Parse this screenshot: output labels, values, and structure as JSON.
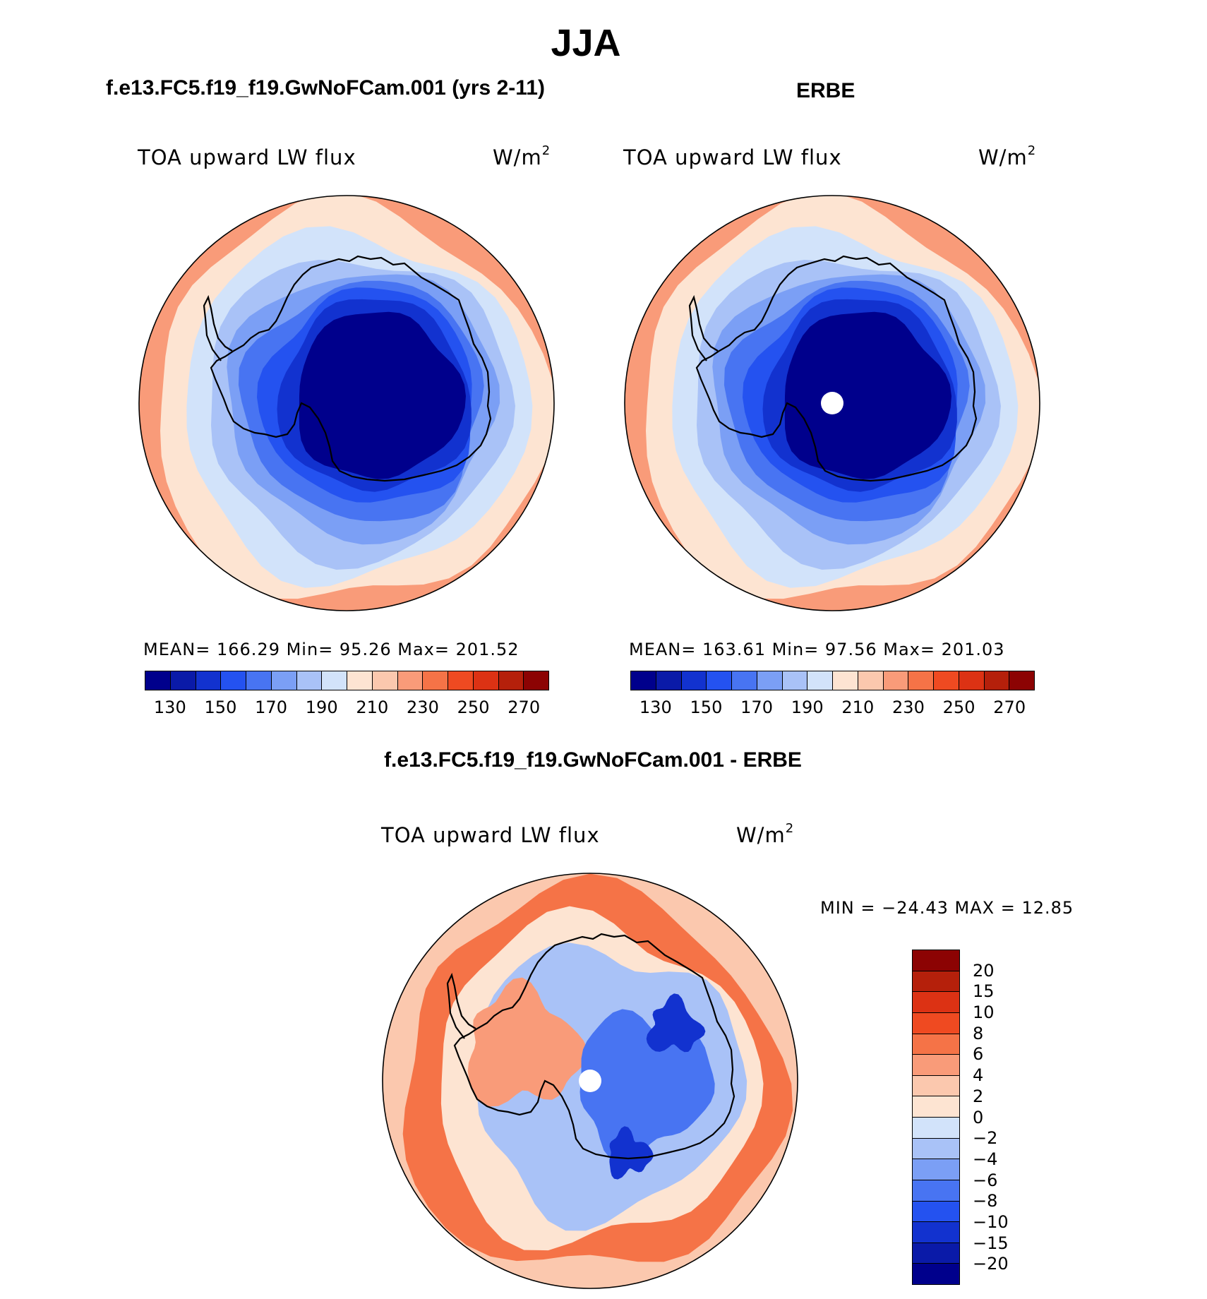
{
  "title": "JJA",
  "colors": {
    "abs_levels": [
      "#00008c",
      "#0a1aa8",
      "#1232cf",
      "#2452f0",
      "#4874f2",
      "#7b9ff5",
      "#a9c2f7",
      "#d2e3fa",
      "#fde4d2",
      "#fbc8ae",
      "#f99b79",
      "#f57347",
      "#ef4a21",
      "#dc3214",
      "#b5200b",
      "#8c0303"
    ],
    "diff_levels": [
      "#8c0303",
      "#b5200b",
      "#dc3214",
      "#ef4a21",
      "#f57347",
      "#f99b79",
      "#fbc8ae",
      "#fde4d2",
      "#d2e3fa",
      "#a9c2f7",
      "#7b9ff5",
      "#4874f2",
      "#2452f0",
      "#1232cf",
      "#0a1aa8",
      "#00008c"
    ]
  },
  "chart_data": [
    {
      "type": "contour-map",
      "projection": "south polar stereographic",
      "title": "f.e13.FC5.f19_f19.GwNoFCam.001 (yrs 2-11)",
      "field": "TOA upward LW flux",
      "units": "W/m",
      "units_sup": "2",
      "stats": {
        "mean": "166.29",
        "min": "95.26",
        "max": "201.52"
      },
      "stats_text": "MEAN= 166.29   Min=   95.26   Max= 201.52",
      "contour_levels": [
        120,
        130,
        140,
        150,
        160,
        170,
        180,
        190,
        200,
        210,
        220,
        230,
        240,
        250,
        260,
        270
      ],
      "tick_labels": [
        "130",
        "150",
        "170",
        "190",
        "210",
        "230",
        "250",
        "270"
      ],
      "field_bands": [
        {
          "value": 210,
          "shape": "outer rim"
        },
        {
          "value": 195,
          "shape": "ocean ring"
        },
        {
          "value": 185,
          "shape": "ocean ring"
        },
        {
          "value": 175,
          "shape": "ocean ring"
        },
        {
          "value": 165,
          "shape": "coastal ring"
        },
        {
          "value": 155,
          "shape": "coastal ring"
        },
        {
          "value": 145,
          "shape": "ice sheet margin"
        },
        {
          "value": 135,
          "shape": "ice sheet margin"
        },
        {
          "value": 115,
          "shape": "east antarctic plateau"
        }
      ]
    },
    {
      "type": "contour-map",
      "projection": "south polar stereographic",
      "title": "ERBE",
      "field": "TOA upward LW flux",
      "units": "W/m",
      "units_sup": "2",
      "stats": {
        "mean": "163.61",
        "min": "97.56",
        "max": "201.03"
      },
      "stats_text": "MEAN= 163.61   Min=   97.56   Max= 201.03",
      "contour_levels": [
        120,
        130,
        140,
        150,
        160,
        170,
        180,
        190,
        200,
        210,
        220,
        230,
        240,
        250,
        260,
        270
      ],
      "tick_labels": [
        "130",
        "150",
        "170",
        "190",
        "210",
        "230",
        "250",
        "270"
      ],
      "field_bands": [
        {
          "value": 210,
          "shape": "outer rim"
        },
        {
          "value": 195,
          "shape": "ocean ring"
        },
        {
          "value": 185,
          "shape": "ocean ring"
        },
        {
          "value": 175,
          "shape": "ocean ring"
        },
        {
          "value": 165,
          "shape": "coastal ring"
        },
        {
          "value": 155,
          "shape": "coastal ring"
        },
        {
          "value": 145,
          "shape": "ice sheet margin"
        },
        {
          "value": 135,
          "shape": "ice sheet margin"
        },
        {
          "value": 115,
          "shape": "east antarctic plateau"
        }
      ]
    },
    {
      "type": "contour-map",
      "projection": "south polar stereographic",
      "title": "f.e13.FC5.f19_f19.GwNoFCam.001 - ERBE",
      "field": "TOA upward LW flux",
      "units": "W/m",
      "units_sup": "2",
      "stats": {
        "min": "-24.43",
        "max": "12.85"
      },
      "stats_text": "MIN = −24.43 MAX =   12.85",
      "contour_levels": [
        20,
        15,
        10,
        8,
        6,
        4,
        2,
        0,
        -2,
        -4,
        -6,
        -8,
        -10,
        -15,
        -20
      ],
      "tick_labels": [
        "20",
        "15",
        "10",
        "8",
        "6",
        "4",
        "2",
        "0",
        "−2",
        "−4",
        "−6",
        "−8",
        "−10",
        "−15",
        "−20"
      ],
      "field_bands": [
        {
          "value": 3,
          "shape": "outer ring"
        },
        {
          "value": 7,
          "shape": "southern ocean ring"
        },
        {
          "value": 1,
          "shape": "mid ring"
        },
        {
          "value": -3,
          "shape": "coastal ring"
        },
        {
          "value": 5,
          "shape": "west antarctic sector"
        },
        {
          "value": -7,
          "shape": "east antarctic plateau"
        },
        {
          "value": -12,
          "shape": "plateau core"
        }
      ]
    }
  ]
}
